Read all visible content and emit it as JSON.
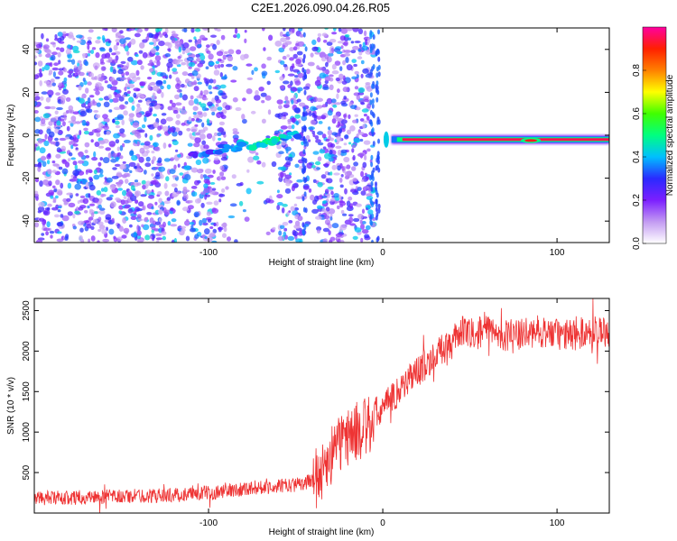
{
  "title": "C2E1.2026.090.04.26.R05",
  "chart_data": [
    {
      "type": "heatmap",
      "xlabel": "Height of straight line (km)",
      "ylabel": "Frequency (Hz)",
      "xlim": [
        -200,
        130
      ],
      "ylim": [
        -50,
        50
      ],
      "x_ticks": [
        -100,
        0,
        100
      ],
      "y_ticks": [
        -40,
        -20,
        0,
        20,
        40
      ],
      "colorbar": {
        "label": "Normalized spectral amplitude",
        "range": [
          0,
          1
        ],
        "ticks": [
          0.0,
          0.2,
          0.4,
          0.6,
          0.8
        ],
        "tick_labels": [
          "0.0",
          "0.2",
          "0.4",
          "0.6",
          "0.8"
        ],
        "colormap": [
          "#ffffff",
          "#c39bf2",
          "#7c1fff",
          "#2a2aff",
          "#00bfff",
          "#00ff80",
          "#40ff00",
          "#ffff00",
          "#ff8000",
          "#ff2000",
          "#ff00a0"
        ]
      },
      "features": {
        "noise_region": [
          -200,
          -5
        ],
        "signal_trace": [
          {
            "x": -110,
            "y": -9,
            "amp": 0.3
          },
          {
            "x": -100,
            "y": -8,
            "amp": 0.35
          },
          {
            "x": -95,
            "y": -7,
            "amp": 0.4
          },
          {
            "x": -90,
            "y": -6,
            "amp": 0.45
          },
          {
            "x": -85,
            "y": -6,
            "amp": 0.4
          },
          {
            "x": -80,
            "y": -4,
            "amp": 0.45
          },
          {
            "x": -75,
            "y": -5,
            "amp": 0.5
          },
          {
            "x": -70,
            "y": -4,
            "amp": 0.5
          },
          {
            "x": -65,
            "y": -3,
            "amp": 0.55
          },
          {
            "x": -60,
            "y": -2,
            "amp": 0.55
          },
          {
            "x": -55,
            "y": -1,
            "amp": 0.45
          },
          {
            "x": -50,
            "y": 0,
            "amp": 0.4
          }
        ],
        "strong_band": {
          "x_start": 5,
          "x_end": 130,
          "y": -2,
          "amp": 0.95
        }
      }
    },
    {
      "type": "line",
      "xlabel": "Height of straight line (km)",
      "ylabel": "SNR (10 * v/v)",
      "xlim": [
        -200,
        130
      ],
      "ylim": [
        0,
        2650
      ],
      "x_ticks": [
        -100,
        0,
        100
      ],
      "y_ticks": [
        500,
        1000,
        1500,
        2000,
        2500
      ],
      "color": "#ee3333",
      "series": [
        {
          "x": [
            -200,
            -180,
            -160,
            -140,
            -120,
            -100,
            -90,
            -80,
            -70,
            -60,
            -50,
            -40,
            -35,
            -30,
            -25,
            -20,
            -15,
            -10,
            -5,
            0,
            5,
            10,
            20,
            30,
            40,
            45,
            50,
            60,
            70,
            80,
            90,
            100,
            110,
            120,
            130
          ],
          "values": [
            180,
            190,
            200,
            210,
            220,
            250,
            270,
            300,
            320,
            330,
            350,
            400,
            500,
            700,
            850,
            950,
            1000,
            1050,
            1150,
            1300,
            1400,
            1550,
            1750,
            1950,
            2100,
            2250,
            2200,
            2250,
            2200,
            2200,
            2250,
            2200,
            2200,
            2250,
            2250
          ]
        }
      ]
    }
  ]
}
